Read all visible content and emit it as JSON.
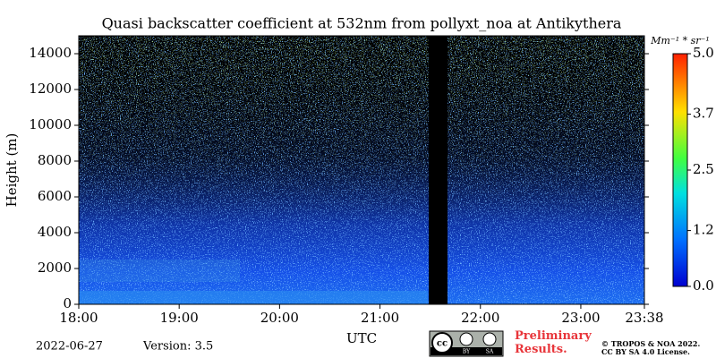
{
  "chart_data": {
    "type": "heatmap",
    "title": "Quasi backscatter coefficient at 532nm from pollyxt_noa at Antikythera",
    "x_label": "UTC",
    "y_label": "Height (m)",
    "xlim": [
      18,
      23.6333
    ],
    "xticks": [
      {
        "value": 18,
        "label": "18:00"
      },
      {
        "value": 19,
        "label": "19:00"
      },
      {
        "value": 20,
        "label": "20:00"
      },
      {
        "value": 21,
        "label": "21:00"
      },
      {
        "value": 22,
        "label": "22:00"
      },
      {
        "value": 23,
        "label": "23:00"
      },
      {
        "value": 23.6333,
        "label": "23:38"
      }
    ],
    "ylim": [
      0,
      15000
    ],
    "yticks": [
      0,
      2000,
      4000,
      6000,
      8000,
      10000,
      12000,
      14000
    ],
    "colorbar_label": "Mm⁻¹ * sr⁻¹",
    "clim": [
      0,
      5
    ],
    "cticks": [
      {
        "value": 0,
        "label": "0.0"
      },
      {
        "value": 1.2,
        "label": "1.2"
      },
      {
        "value": 2.5,
        "label": "2.5"
      },
      {
        "value": 3.7,
        "label": "3.7"
      },
      {
        "value": 5,
        "label": "5.0"
      }
    ]
  },
  "footer": {
    "date": "2022-06-27",
    "version": "Version: 3.5",
    "preliminary": "Preliminary Results.",
    "license_badge": [
      "cc",
      "BY",
      "SA"
    ],
    "copyright": [
      "© TROPOS & NOA 2022.",
      "CC BY SA 4.0 License."
    ]
  }
}
